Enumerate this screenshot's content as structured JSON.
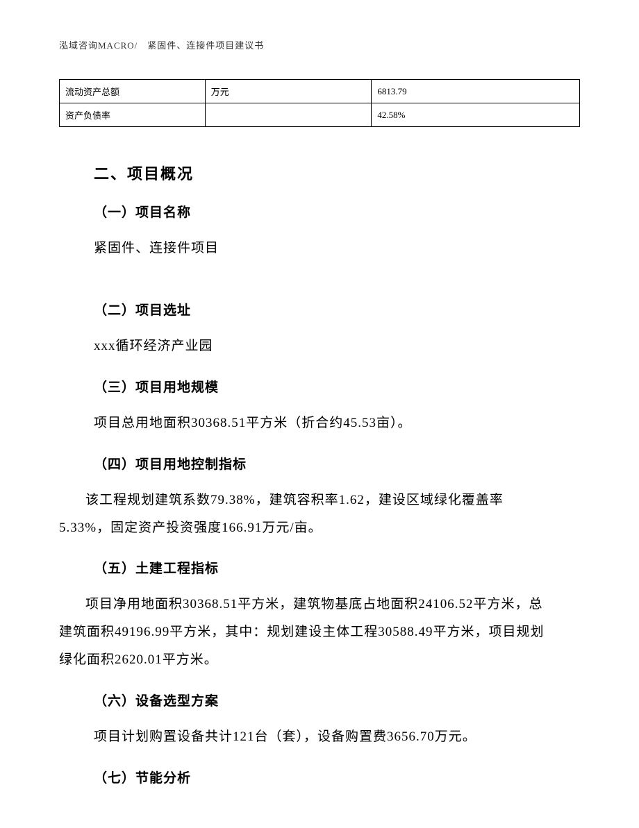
{
  "header": {
    "text": "泓域咨询MACRO/　紧固件、连接件项目建议书"
  },
  "table": {
    "rows": [
      {
        "label": "流动资产总额",
        "unit": "万元",
        "value": "6813.79"
      },
      {
        "label": "资产负债率",
        "unit": "",
        "value": "42.58%"
      }
    ]
  },
  "section": {
    "title": "二、项目概况",
    "items": [
      {
        "heading": "（一）项目名称",
        "body": "紧固件、连接件项目"
      },
      {
        "heading": "（二）项目选址",
        "body": "xxx循环经济产业园"
      },
      {
        "heading": "（三）项目用地规模",
        "body": "项目总用地面积30368.51平方米（折合约45.53亩）。"
      },
      {
        "heading": "（四）项目用地控制指标",
        "body": "该工程规划建筑系数79.38%，建筑容积率1.62，建设区域绿化覆盖率5.33%，固定资产投资强度166.91万元/亩。"
      },
      {
        "heading": "（五）土建工程指标",
        "body": "项目净用地面积30368.51平方米，建筑物基底占地面积24106.52平方米，总建筑面积49196.99平方米，其中：规划建设主体工程30588.49平方米，项目规划绿化面积2620.01平方米。"
      },
      {
        "heading": "（六）设备选型方案",
        "body": "项目计划购置设备共计121台（套），设备购置费3656.70万元。"
      },
      {
        "heading": "（七）节能分析",
        "body": ""
      }
    ]
  }
}
